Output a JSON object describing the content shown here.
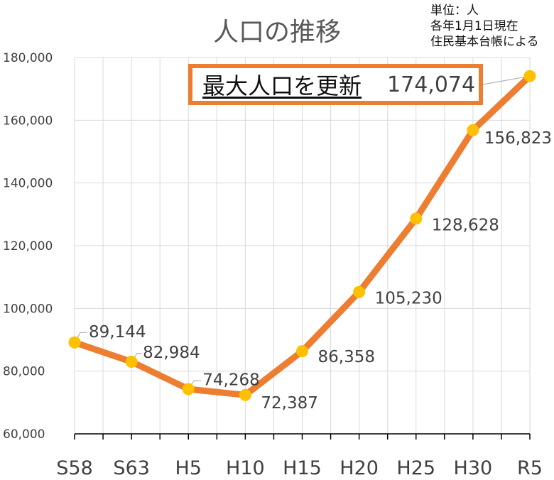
{
  "title": "人口の推移",
  "note": {
    "unit": "単位：人",
    "as_of": "各年1月1日現在",
    "source": "住民基本台帳による"
  },
  "callout": {
    "label": "最大人口を更新",
    "value": "174,074"
  },
  "colors": {
    "line": "#ed7d31",
    "marker": "#ffc000",
    "grid": "#d9d9d9",
    "axis": "#000000",
    "text": "#404040"
  },
  "chart_data": {
    "type": "line",
    "title": "人口の推移",
    "categories": [
      "S58",
      "S63",
      "H5",
      "H10",
      "H15",
      "H20",
      "H25",
      "H30",
      "R5"
    ],
    "series": [
      {
        "values": [
          89144,
          82984,
          74268,
          72387,
          86358,
          105230,
          128628,
          156823,
          174074
        ]
      }
    ],
    "data_labels": [
      "89,144",
      "82,984",
      "74,268",
      "72,387",
      "86,358",
      "105,230",
      "128,628",
      "156,823",
      "174,074"
    ],
    "ylim": [
      60000,
      180000
    ],
    "yticks": [
      60000,
      80000,
      100000,
      120000,
      140000,
      160000,
      180000
    ],
    "ytick_labels": [
      "60,000",
      "80,000",
      "100,000",
      "120,000",
      "140,000",
      "160,000",
      "180,000"
    ],
    "grid": true,
    "legend": "none"
  }
}
